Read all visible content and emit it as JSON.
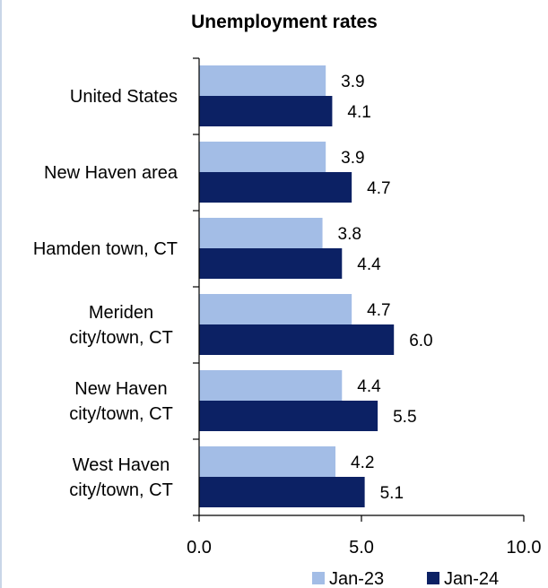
{
  "chart_data": {
    "type": "bar",
    "orientation": "horizontal",
    "title": "Unemployment rates",
    "xlabel": "",
    "ylabel": "",
    "xlim": [
      0,
      10
    ],
    "xticks": [
      "0.0",
      "5.0",
      "10.0"
    ],
    "grid": false,
    "legend_position": "bottom-right",
    "categories": [
      [
        "United States"
      ],
      [
        "New Haven area"
      ],
      [
        "Hamden town, CT"
      ],
      [
        "Meriden",
        "city/town, CT"
      ],
      [
        "New Haven",
        "city/town, CT"
      ],
      [
        "West Haven",
        "city/town, CT"
      ]
    ],
    "series": [
      {
        "name": "Jan-23",
        "color": "#a3bde6",
        "values": [
          3.9,
          3.9,
          3.8,
          4.7,
          4.4,
          4.2
        ],
        "labels": [
          "3.9",
          "3.9",
          "3.8",
          "4.7",
          "4.4",
          "4.2"
        ]
      },
      {
        "name": "Jan-24",
        "color": "#0c2164",
        "values": [
          4.1,
          4.7,
          4.4,
          6.0,
          5.5,
          5.1
        ],
        "labels": [
          "4.1",
          "4.7",
          "4.4",
          "6.0",
          "5.5",
          "5.1"
        ]
      }
    ]
  }
}
